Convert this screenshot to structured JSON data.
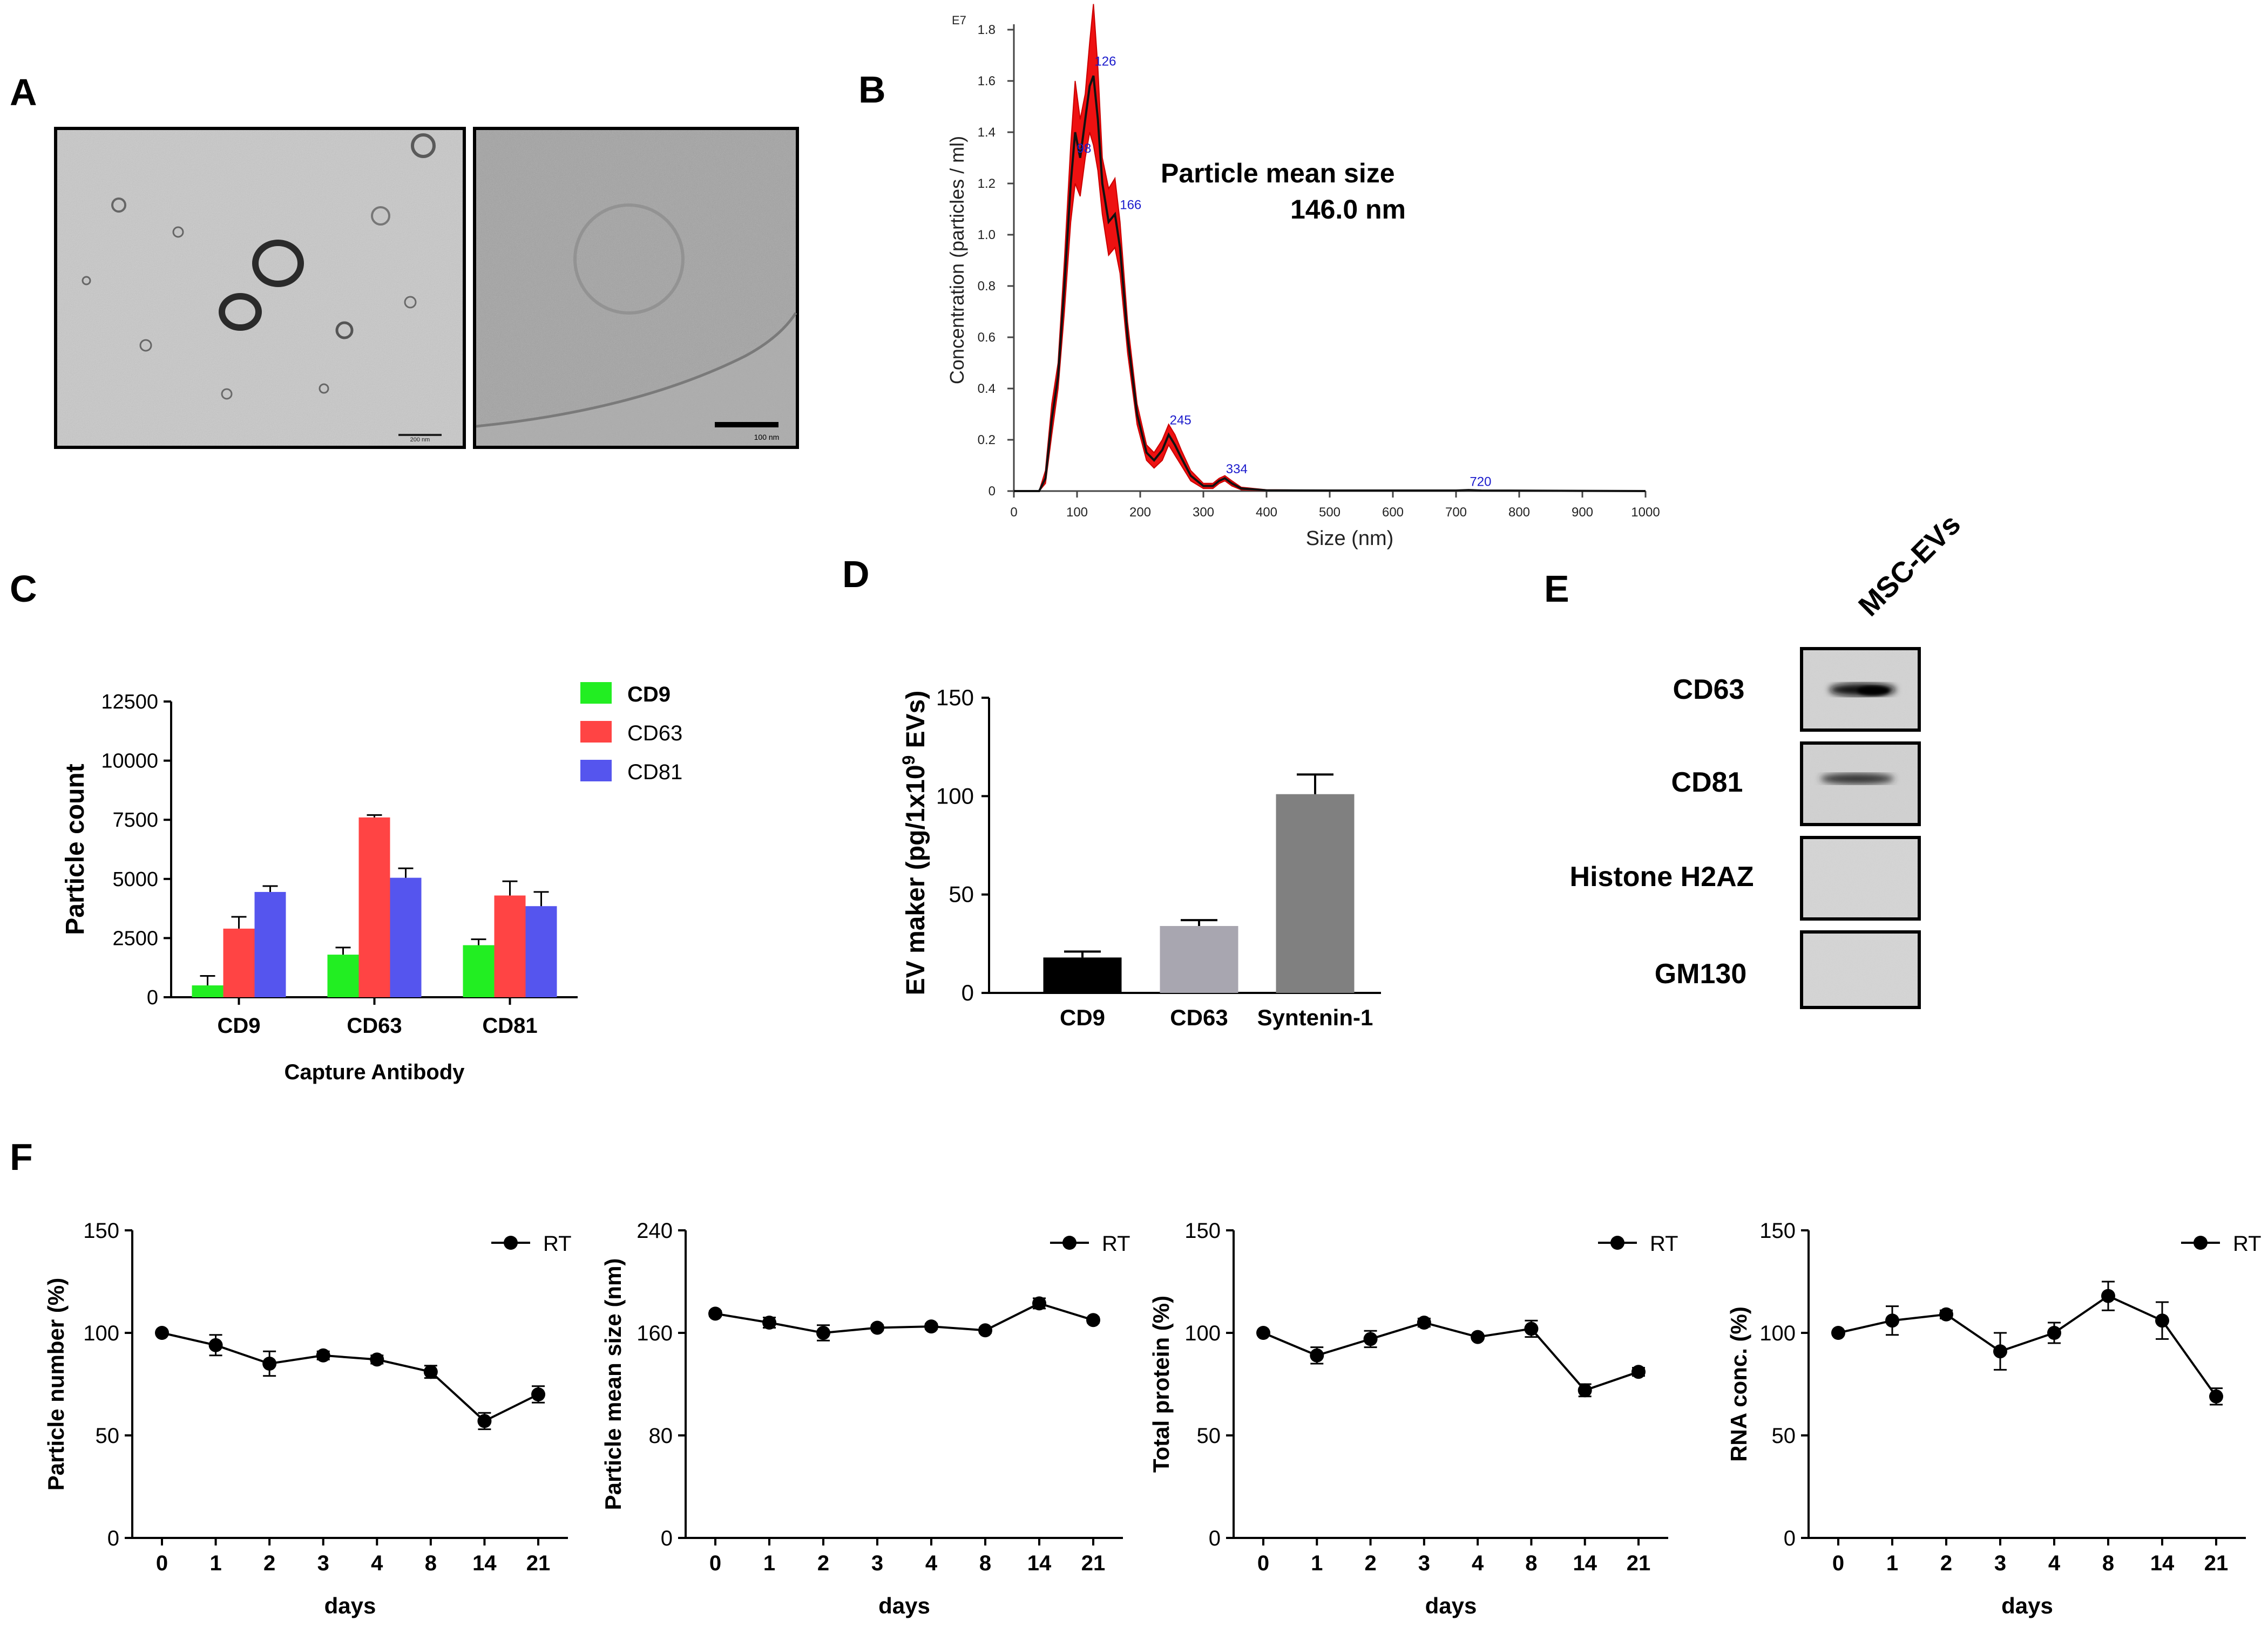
{
  "panels": {
    "A": {
      "letter": "A",
      "images": [
        {
          "kind": "TEM micrograph",
          "scale_label": "200 nm"
        },
        {
          "kind": "Cryo-EM micrograph",
          "scale_label": "100 nm"
        }
      ]
    },
    "B": {
      "letter": "B"
    },
    "C": {
      "letter": "C"
    },
    "D": {
      "letter": "D"
    },
    "E": {
      "letter": "E",
      "column_label": "MSC-EVs",
      "rows": [
        {
          "label": "CD63",
          "band": "strong"
        },
        {
          "label": "CD81",
          "band": "medium"
        },
        {
          "label": "Histone H2AZ",
          "band": "none"
        },
        {
          "label": "GM130",
          "band": "none"
        }
      ]
    },
    "F": {
      "letter": "F"
    }
  },
  "chart_data": [
    {
      "id": "B",
      "type": "line",
      "title": "",
      "xlabel": "Size (nm)",
      "ylabel": "Concentration (particles / ml)",
      "y_multiplier_label": "E7",
      "xlim": [
        0,
        1000
      ],
      "ylim": [
        0,
        1.8
      ],
      "xticks": [
        0,
        100,
        200,
        300,
        400,
        500,
        600,
        700,
        800,
        900,
        1000
      ],
      "yticks": [
        0,
        0.2,
        0.4,
        0.6,
        0.8,
        1.0,
        1.2,
        1.4,
        1.6,
        1.8
      ],
      "ytick_labels": [
        "0",
        "0.2",
        "0.4",
        "0.6",
        "0.8",
        "1.0",
        "1.2",
        "1.4",
        "1.6",
        "1.8"
      ],
      "annotation": {
        "line1": "Particle mean size",
        "line2": "146.0 nm"
      },
      "series": [
        {
          "name": "mean",
          "x": [
            0,
            40,
            50,
            60,
            70,
            80,
            90,
            97,
            105,
            113,
            120,
            126,
            133,
            140,
            150,
            160,
            168,
            180,
            195,
            210,
            222,
            235,
            245,
            255,
            265,
            280,
            300,
            315,
            325,
            334,
            345,
            360,
            400,
            500,
            700,
            720,
            740,
            1000
          ],
          "y": [
            0,
            0,
            0.05,
            0.28,
            0.45,
            0.8,
            1.2,
            1.4,
            1.3,
            1.45,
            1.58,
            1.62,
            1.45,
            1.2,
            1.05,
            1.08,
            0.95,
            0.6,
            0.3,
            0.15,
            0.12,
            0.16,
            0.22,
            0.18,
            0.13,
            0.06,
            0.02,
            0.02,
            0.04,
            0.05,
            0.03,
            0.01,
            0.003,
            0.002,
            0.002,
            0.004,
            0.002,
            0.0
          ]
        },
        {
          "name": "upper",
          "x": [
            0,
            40,
            50,
            60,
            70,
            80,
            90,
            97,
            105,
            113,
            120,
            126,
            133,
            140,
            150,
            160,
            168,
            180,
            195,
            210,
            222,
            235,
            245,
            255,
            265,
            280,
            300,
            315,
            325,
            334,
            345,
            360,
            400,
            500,
            700,
            720,
            740,
            1000
          ],
          "y": [
            0,
            0,
            0.08,
            0.34,
            0.5,
            0.9,
            1.35,
            1.6,
            1.45,
            1.55,
            1.75,
            1.9,
            1.65,
            1.3,
            1.18,
            1.22,
            1.05,
            0.66,
            0.34,
            0.18,
            0.15,
            0.2,
            0.26,
            0.22,
            0.16,
            0.08,
            0.03,
            0.03,
            0.05,
            0.06,
            0.04,
            0.015,
            0.005,
            0.003,
            0.003,
            0.005,
            0.003,
            0.0
          ]
        },
        {
          "name": "lower",
          "x": [
            0,
            40,
            50,
            60,
            70,
            80,
            90,
            97,
            105,
            113,
            120,
            126,
            133,
            140,
            150,
            160,
            168,
            180,
            195,
            210,
            222,
            235,
            245,
            255,
            265,
            280,
            300,
            315,
            325,
            334,
            345,
            360,
            400,
            500,
            700,
            720,
            740,
            1000
          ],
          "y": [
            0,
            0,
            0.03,
            0.22,
            0.4,
            0.7,
            1.05,
            1.2,
            1.15,
            1.3,
            1.4,
            1.35,
            1.25,
            1.08,
            0.92,
            0.95,
            0.85,
            0.54,
            0.26,
            0.12,
            0.09,
            0.12,
            0.18,
            0.14,
            0.1,
            0.04,
            0.01,
            0.01,
            0.03,
            0.04,
            0.02,
            0.005,
            0.001,
            0.001,
            0.001,
            0.003,
            0.001,
            0.0
          ]
        }
      ],
      "peak_labels": [
        {
          "x": 98,
          "y": 1.32,
          "label": "98"
        },
        {
          "x": 126,
          "y": 1.66,
          "label": "126"
        },
        {
          "x": 166,
          "y": 1.1,
          "label": "166"
        },
        {
          "x": 245,
          "y": 0.26,
          "label": "245"
        },
        {
          "x": 334,
          "y": 0.07,
          "label": "334"
        },
        {
          "x": 720,
          "y": 0.02,
          "label": "720"
        }
      ]
    },
    {
      "id": "C",
      "type": "bar",
      "xlabel": "Capture Antibody",
      "ylabel": "Particle count",
      "ylim": [
        0,
        12500
      ],
      "yticks": [
        0,
        2500,
        5000,
        7500,
        10000,
        12500
      ],
      "categories": [
        "CD9",
        "CD63",
        "CD81"
      ],
      "series": [
        {
          "name": "CD9",
          "color": "#22ee22",
          "values": [
            500,
            1800,
            2200
          ],
          "errors": [
            400,
            300,
            250
          ]
        },
        {
          "name": "CD63",
          "color": "#ff4444",
          "values": [
            2900,
            7600,
            4300
          ],
          "errors": [
            500,
            100,
            600
          ]
        },
        {
          "name": "CD81",
          "color": "#5555ee",
          "values": [
            4450,
            5050,
            3850
          ],
          "errors": [
            250,
            400,
            600
          ]
        }
      ],
      "legend": "top-right"
    },
    {
      "id": "D",
      "type": "bar",
      "xlabel": "",
      "ylabel_prefix": "EV maker (pg/1x10",
      "ylabel_sup": "9",
      "ylabel_suffix": " EVs)",
      "ylim": [
        0,
        150
      ],
      "yticks": [
        0,
        50,
        100,
        150
      ],
      "categories": [
        "CD9",
        "CD63",
        "Syntenin-1"
      ],
      "colors": [
        "#000000",
        "#a8a6b0",
        "#808080"
      ],
      "values": [
        18,
        34,
        101
      ],
      "errors": [
        3,
        3,
        10
      ]
    },
    {
      "id": "F1",
      "type": "line",
      "xlabel": "days",
      "ylabel": "Particle number (%)",
      "legend": "RT",
      "categories": [
        "0",
        "1",
        "2",
        "3",
        "4",
        "8",
        "14",
        "21"
      ],
      "values": [
        100,
        94,
        85,
        89,
        87,
        81,
        57,
        70
      ],
      "errors": [
        1,
        5,
        6,
        2,
        2,
        3,
        4,
        4
      ],
      "ylim": [
        0,
        150
      ],
      "yticks": [
        0,
        50,
        100,
        150
      ]
    },
    {
      "id": "F2",
      "type": "line",
      "xlabel": "days",
      "ylabel": "Particle mean size (nm)",
      "legend": "RT",
      "categories": [
        "0",
        "1",
        "2",
        "3",
        "4",
        "8",
        "14",
        "21"
      ],
      "values": [
        175,
        168,
        160,
        164,
        165,
        162,
        183,
        170
      ],
      "errors": [
        2,
        4,
        6,
        2,
        2,
        2,
        4,
        2
      ],
      "ylim": [
        0,
        240
      ],
      "yticks": [
        0,
        80,
        160,
        240
      ]
    },
    {
      "id": "F3",
      "type": "line",
      "xlabel": "days",
      "ylabel": "Total protein (%)",
      "legend": "RT",
      "categories": [
        "0",
        "1",
        "2",
        "3",
        "4",
        "8",
        "14",
        "21"
      ],
      "values": [
        100,
        89,
        97,
        105,
        98,
        102,
        72,
        81
      ],
      "errors": [
        1,
        4,
        4,
        2,
        1,
        4,
        3,
        2
      ],
      "ylim": [
        0,
        150
      ],
      "yticks": [
        0,
        50,
        100,
        150
      ]
    },
    {
      "id": "F4",
      "type": "line",
      "xlabel": "days",
      "ylabel": "RNA conc. (%)",
      "legend": "RT",
      "categories": [
        "0",
        "1",
        "2",
        "3",
        "4",
        "8",
        "14",
        "21"
      ],
      "values": [
        100,
        106,
        109,
        91,
        100,
        118,
        106,
        69
      ],
      "errors": [
        1,
        7,
        2,
        9,
        5,
        7,
        9,
        4
      ],
      "ylim": [
        0,
        150
      ],
      "yticks": [
        0,
        50,
        100,
        150
      ]
    }
  ]
}
